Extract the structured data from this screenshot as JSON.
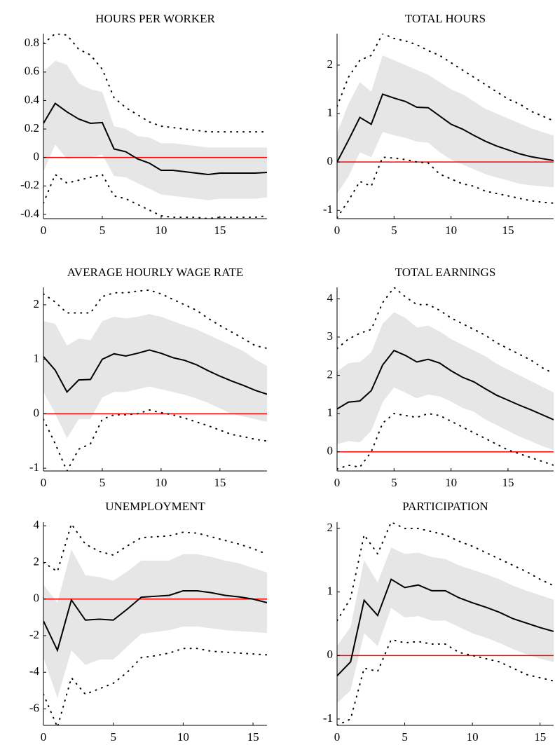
{
  "chart_data": [
    {
      "type": "line",
      "title": "HOURS PER WORKER",
      "x": [
        0,
        1,
        2,
        3,
        4,
        5,
        6,
        7,
        8,
        9,
        10,
        11,
        12,
        13,
        14,
        15,
        16,
        17,
        18,
        19
      ],
      "xlim": [
        0,
        19
      ],
      "xticks": [
        0,
        5,
        10,
        15
      ],
      "ylim": [
        -0.43,
        0.87
      ],
      "yticks": [
        -0.4,
        -0.2,
        0,
        0.2,
        0.4,
        0.6,
        0.8
      ],
      "band": {
        "color": "#e6e6e6",
        "upper": [
          0.6,
          0.68,
          0.65,
          0.52,
          0.48,
          0.46,
          0.22,
          0.2,
          0.15,
          0.14,
          0.1,
          0.1,
          0.09,
          0.08,
          0.07,
          0.07,
          0.07,
          0.07,
          0.07,
          0.07
        ],
        "lower": [
          -0.1,
          0.09,
          -0.01,
          0,
          0,
          0.02,
          -0.13,
          -0.14,
          -0.18,
          -0.22,
          -0.26,
          -0.27,
          -0.28,
          -0.29,
          -0.3,
          -0.29,
          -0.29,
          -0.29,
          -0.29,
          -0.28
        ]
      },
      "reference_line": {
        "value": 0,
        "color": "#ff0000"
      },
      "series": [
        {
          "color": "#000000",
          "style": "solid",
          "values": [
            0.24,
            0.38,
            0.32,
            0.27,
            0.24,
            0.245,
            0.06,
            0.04,
            -0.01,
            -0.04,
            -0.09,
            -0.09,
            -0.1,
            -0.11,
            -0.12,
            -0.11,
            -0.11,
            -0.11,
            -0.11,
            -0.105
          ]
        },
        {
          "color": "#000000",
          "style": "dotted",
          "values": [
            0.8,
            0.87,
            0.86,
            0.76,
            0.72,
            0.62,
            0.42,
            0.35,
            0.3,
            0.25,
            0.22,
            0.21,
            0.2,
            0.19,
            0.18,
            0.18,
            0.18,
            0.18,
            0.18,
            0.18
          ]
        },
        {
          "color": "#000000",
          "style": "dotted",
          "values": [
            -0.32,
            -0.12,
            -0.18,
            -0.16,
            -0.14,
            -0.12,
            -0.27,
            -0.29,
            -0.33,
            -0.37,
            -0.41,
            -0.42,
            -0.42,
            -0.42,
            -0.43,
            -0.42,
            -0.42,
            -0.42,
            -0.42,
            -0.41
          ]
        }
      ]
    },
    {
      "type": "line",
      "title": "TOTAL HOURS",
      "x": [
        0,
        1,
        2,
        3,
        4,
        5,
        6,
        7,
        8,
        9,
        10,
        11,
        12,
        13,
        14,
        15,
        16,
        17,
        18,
        19
      ],
      "xlim": [
        0,
        19
      ],
      "xticks": [
        0,
        5,
        10,
        15
      ],
      "ylim": [
        -1.17,
        2.65
      ],
      "yticks": [
        -1,
        0,
        1,
        2
      ],
      "band": {
        "color": "#e6e6e6",
        "upper": [
          0.6,
          1.2,
          1.65,
          1.45,
          2.2,
          2.1,
          2,
          1.9,
          1.8,
          1.65,
          1.5,
          1.4,
          1.25,
          1.1,
          1,
          0.9,
          0.8,
          0.7,
          0.62,
          0.55
        ],
        "lower": [
          -0.65,
          -0.3,
          0.2,
          0.1,
          0.62,
          0.55,
          0.5,
          0.42,
          0.4,
          0.2,
          0.05,
          -0.05,
          -0.15,
          -0.25,
          -0.32,
          -0.38,
          -0.45,
          -0.48,
          -0.5,
          -0.52
        ]
      },
      "reference_line": {
        "value": 0,
        "color": "#ff0000"
      },
      "series": [
        {
          "color": "#000000",
          "style": "solid",
          "values": [
            0,
            0.45,
            0.92,
            0.78,
            1.4,
            1.32,
            1.25,
            1.13,
            1.12,
            0.95,
            0.78,
            0.68,
            0.55,
            0.43,
            0.33,
            0.25,
            0.17,
            0.11,
            0.07,
            0.03
          ]
        },
        {
          "color": "#000000",
          "style": "dotted",
          "values": [
            1.15,
            1.75,
            2.1,
            2.2,
            2.65,
            2.55,
            2.5,
            2.42,
            2.3,
            2.2,
            2.05,
            1.9,
            1.75,
            1.6,
            1.45,
            1.3,
            1.2,
            1.05,
            0.95,
            0.85
          ]
        },
        {
          "color": "#000000",
          "style": "dotted",
          "values": [
            -1.15,
            -0.8,
            -0.4,
            -0.5,
            0.1,
            0.08,
            0.05,
            0,
            -0.02,
            -0.25,
            -0.35,
            -0.45,
            -0.5,
            -0.6,
            -0.65,
            -0.7,
            -0.75,
            -0.8,
            -0.83,
            -0.85
          ]
        }
      ]
    },
    {
      "type": "line",
      "title": "AVERAGE HOURLY WAGE RATE",
      "x": [
        0,
        1,
        2,
        3,
        4,
        5,
        6,
        7,
        8,
        9,
        10,
        11,
        12,
        13,
        14,
        15,
        16,
        17,
        18,
        19
      ],
      "xlim": [
        0,
        19
      ],
      "xticks": [
        0,
        5,
        10,
        15
      ],
      "ylim": [
        -1.05,
        2.32
      ],
      "yticks": [
        -1,
        0,
        1,
        2
      ],
      "band": {
        "color": "#e6e6e6",
        "upper": [
          1.7,
          1.65,
          1.25,
          1.38,
          1.35,
          1.7,
          1.78,
          1.75,
          1.78,
          1.83,
          1.78,
          1.7,
          1.62,
          1.55,
          1.45,
          1.35,
          1.25,
          1.15,
          1,
          0.88
        ],
        "lower": [
          0.4,
          0,
          -0.45,
          -0.1,
          -0.1,
          0.3,
          0.4,
          0.4,
          0.45,
          0.5,
          0.45,
          0.4,
          0.35,
          0.28,
          0.2,
          0.1,
          0,
          -0.05,
          -0.1,
          -0.15
        ]
      },
      "reference_line": {
        "value": 0,
        "color": "#ff0000"
      },
      "series": [
        {
          "color": "#000000",
          "style": "solid",
          "values": [
            1.05,
            0.8,
            0.4,
            0.62,
            0.63,
            1,
            1.1,
            1.06,
            1.11,
            1.17,
            1.11,
            1.03,
            0.98,
            0.9,
            0.79,
            0.69,
            0.6,
            0.52,
            0.43,
            0.36
          ]
        },
        {
          "color": "#000000",
          "style": "dotted",
          "values": [
            2.2,
            2.05,
            1.85,
            1.85,
            1.85,
            2.15,
            2.22,
            2.22,
            2.25,
            2.27,
            2.2,
            2.1,
            2,
            1.9,
            1.75,
            1.62,
            1.5,
            1.38,
            1.25,
            1.2
          ]
        },
        {
          "color": "#000000",
          "style": "dotted",
          "values": [
            -0.1,
            -0.55,
            -1.05,
            -0.65,
            -0.55,
            -0.1,
            -0.02,
            -0.02,
            0,
            0.07,
            0.02,
            -0.02,
            -0.08,
            -0.15,
            -0.22,
            -0.3,
            -0.38,
            -0.42,
            -0.47,
            -0.5
          ]
        }
      ]
    },
    {
      "type": "line",
      "title": "TOTAL EARNINGS",
      "x": [
        0,
        1,
        2,
        3,
        4,
        5,
        6,
        7,
        8,
        9,
        10,
        11,
        12,
        13,
        14,
        15,
        16,
        17,
        18,
        19
      ],
      "xlim": [
        0,
        19
      ],
      "xticks": [
        0,
        5,
        10,
        15
      ],
      "ylim": [
        -0.5,
        4.3
      ],
      "yticks": [
        0,
        1,
        2,
        3,
        4
      ],
      "band": {
        "color": "#e6e6e6",
        "upper": [
          2.1,
          2.32,
          2.35,
          2.6,
          3.35,
          3.65,
          3.5,
          3.25,
          3.3,
          3.15,
          2.95,
          2.8,
          2.65,
          2.5,
          2.3,
          2.15,
          2,
          1.85,
          1.7,
          1.55
        ],
        "lower": [
          0.2,
          0.28,
          0.25,
          0.55,
          1.3,
          1.68,
          1.55,
          1.4,
          1.5,
          1.45,
          1.32,
          1.15,
          1.05,
          0.85,
          0.7,
          0.55,
          0.4,
          0.28,
          0.15,
          0.05
        ]
      },
      "reference_line": {
        "value": 0,
        "color": "#ff0000"
      },
      "series": [
        {
          "color": "#000000",
          "style": "solid",
          "values": [
            1.12,
            1.3,
            1.33,
            1.6,
            2.27,
            2.65,
            2.52,
            2.35,
            2.42,
            2.32,
            2.12,
            1.95,
            1.83,
            1.65,
            1.48,
            1.35,
            1.22,
            1.1,
            0.97,
            0.84
          ]
        },
        {
          "color": "#000000",
          "style": "dotted",
          "values": [
            2.7,
            2.95,
            3.1,
            3.2,
            3.9,
            4.3,
            4.05,
            3.85,
            3.85,
            3.7,
            3.5,
            3.35,
            3.2,
            3.05,
            2.85,
            2.7,
            2.55,
            2.4,
            2.2,
            2.05
          ]
        },
        {
          "color": "#000000",
          "style": "dotted",
          "values": [
            -0.45,
            -0.35,
            -0.4,
            0,
            0.75,
            1,
            0.95,
            0.9,
            1,
            0.95,
            0.8,
            0.65,
            0.5,
            0.35,
            0.2,
            0.05,
            -0.05,
            -0.15,
            -0.25,
            -0.35
          ]
        }
      ]
    },
    {
      "type": "line",
      "title": "UNEMPLOYMENT",
      "x": [
        0,
        1,
        2,
        3,
        4,
        5,
        6,
        7,
        8,
        9,
        10,
        11,
        12,
        13,
        14,
        15,
        16
      ],
      "xlim": [
        0,
        16
      ],
      "xticks": [
        0,
        5,
        10,
        15
      ],
      "ylim": [
        -6.9,
        4.2
      ],
      "yticks": [
        -6,
        -4,
        -2,
        0,
        2,
        4
      ],
      "band": {
        "color": "#e6e6e6",
        "upper": [
          0.8,
          -0.2,
          2.7,
          1.3,
          1.2,
          1,
          1.5,
          2.1,
          2.1,
          2.1,
          2.45,
          2.45,
          2.3,
          2.1,
          1.95,
          1.7,
          1.45
        ],
        "lower": [
          -3.2,
          -5.4,
          -2.8,
          -3.6,
          -3.3,
          -3.3,
          -2.6,
          -1.9,
          -1.8,
          -1.7,
          -1.5,
          -1.5,
          -1.6,
          -1.7,
          -1.75,
          -1.8,
          -1.85
        ]
      },
      "reference_line": {
        "value": 0,
        "color": "#ff0000"
      },
      "series": [
        {
          "color": "#000000",
          "style": "solid",
          "values": [
            -1.2,
            -2.8,
            -0.05,
            -1.15,
            -1.1,
            -1.15,
            -0.55,
            0.1,
            0.15,
            0.2,
            0.45,
            0.45,
            0.35,
            0.2,
            0.12,
            0,
            -0.2
          ]
        },
        {
          "color": "#000000",
          "style": "dotted",
          "values": [
            2,
            1.5,
            4.1,
            3,
            2.6,
            2.4,
            2.9,
            3.35,
            3.4,
            3.45,
            3.65,
            3.6,
            3.4,
            3.2,
            3,
            2.75,
            2.45
          ]
        },
        {
          "color": "#000000",
          "style": "dotted",
          "values": [
            -5.2,
            -7,
            -4.3,
            -5.2,
            -4.9,
            -4.6,
            -4,
            -3.2,
            -3.1,
            -2.95,
            -2.7,
            -2.7,
            -2.85,
            -2.9,
            -2.95,
            -3,
            -3.05
          ]
        }
      ]
    },
    {
      "type": "line",
      "title": "PARTICIPATION",
      "x": [
        0,
        1,
        2,
        3,
        4,
        5,
        6,
        7,
        8,
        9,
        10,
        11,
        12,
        13,
        14,
        15,
        16
      ],
      "xlim": [
        0,
        16
      ],
      "xticks": [
        0,
        5,
        10,
        15
      ],
      "ylim": [
        -1.1,
        2.1
      ],
      "yticks": [
        -1,
        0,
        1,
        2
      ],
      "band": {
        "color": "#e6e6e6",
        "upper": [
          0.15,
          0.45,
          1.5,
          1.15,
          1.7,
          1.6,
          1.62,
          1.55,
          1.52,
          1.42,
          1.35,
          1.28,
          1.2,
          1.1,
          1.02,
          0.95,
          0.88
        ],
        "lower": [
          -0.75,
          -0.55,
          0.35,
          0.15,
          0.75,
          0.6,
          0.62,
          0.55,
          0.55,
          0.45,
          0.35,
          0.28,
          0.2,
          0.1,
          0.02,
          -0.05,
          -0.1
        ]
      },
      "reference_line": {
        "value": 0,
        "color": "#ff0000"
      },
      "series": [
        {
          "color": "#000000",
          "style": "solid",
          "values": [
            -0.32,
            -0.1,
            0.87,
            0.63,
            1.2,
            1.07,
            1.11,
            1.02,
            1.02,
            0.91,
            0.83,
            0.76,
            0.68,
            0.58,
            0.51,
            0.44,
            0.38
          ]
        },
        {
          "color": "#000000",
          "style": "dotted",
          "values": [
            0.55,
            0.9,
            1.9,
            1.6,
            2.1,
            2,
            2,
            1.95,
            1.9,
            1.8,
            1.72,
            1.62,
            1.52,
            1.42,
            1.32,
            1.2,
            1.1
          ]
        },
        {
          "color": "#000000",
          "style": "dotted",
          "values": [
            -1.1,
            -1,
            -0.2,
            -0.25,
            0.25,
            0.2,
            0.22,
            0.18,
            0.18,
            0.05,
            0,
            -0.05,
            -0.1,
            -0.2,
            -0.3,
            -0.35,
            -0.4
          ]
        }
      ]
    }
  ]
}
